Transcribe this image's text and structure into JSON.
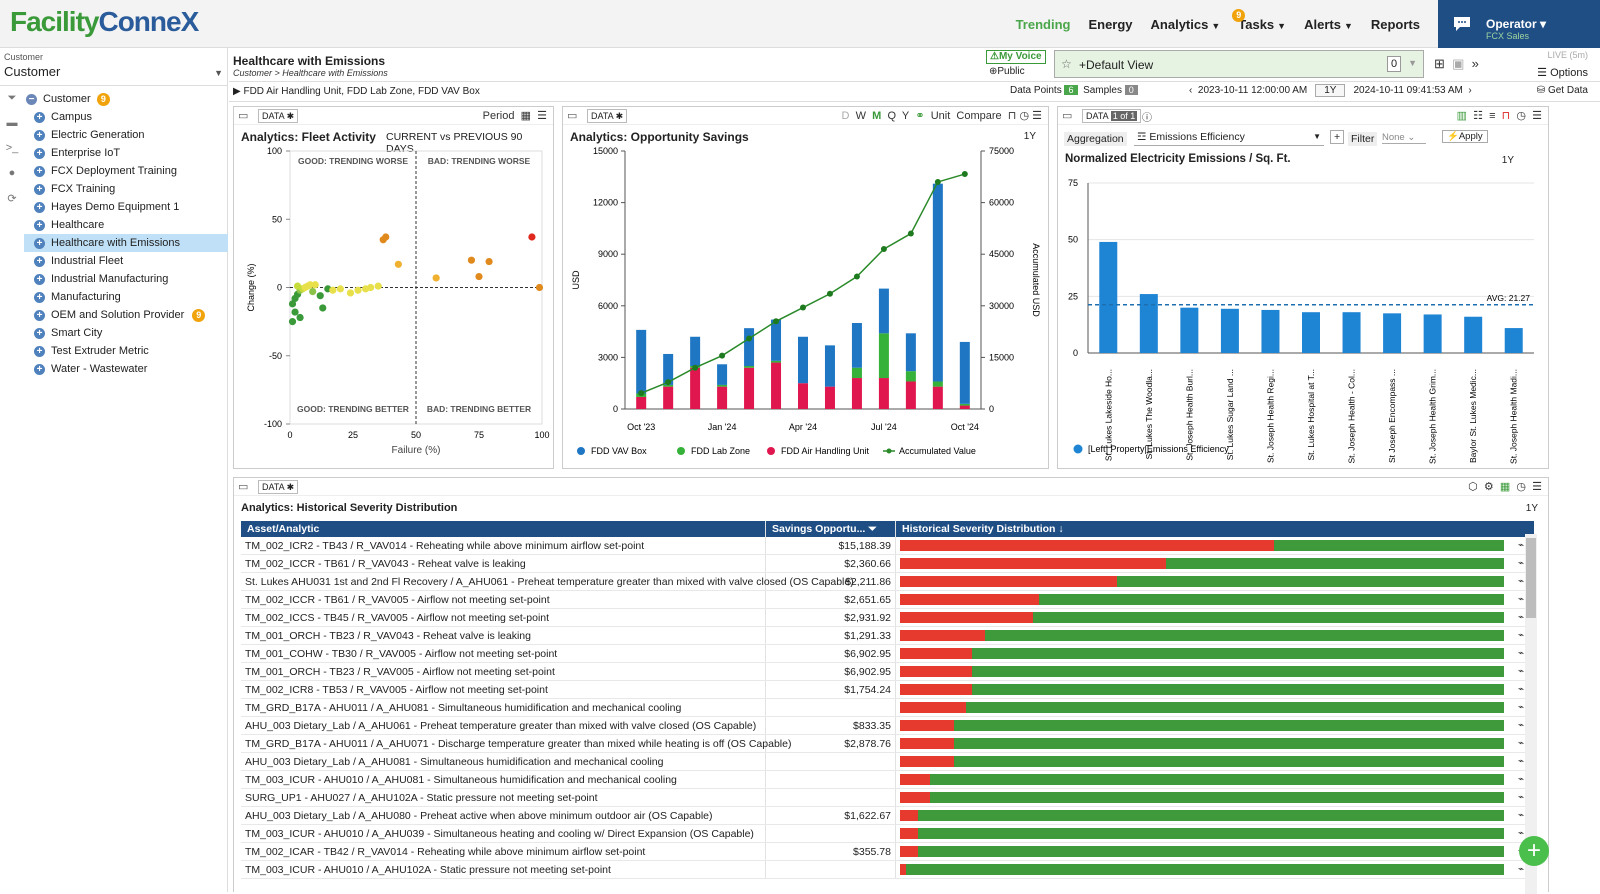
{
  "app": {
    "logo_a": "Facility",
    "logo_b": "ConneX"
  },
  "nav": {
    "trending": "Trending",
    "energy": "Energy",
    "analytics": "Analytics",
    "tasks": "Tasks",
    "tasks_badge": "9",
    "alerts": "Alerts",
    "reports": "Reports"
  },
  "operator": {
    "name": "Operator",
    "sub": "FCX Sales"
  },
  "sidebar": {
    "label": "Customer",
    "selected": "Customer",
    "root": "Customer",
    "root_badge": "9",
    "items": [
      "Campus",
      "Electric Generation",
      "Enterprise IoT",
      "FCX Deployment Training",
      "FCX Training",
      "Hayes Demo Equipment 1",
      "Healthcare",
      "Healthcare with Emissions",
      "Industrial Fleet",
      "Industrial Manufacturing",
      "Manufacturing",
      "OEM and Solution Provider",
      "Smart City",
      "Test Extruder Metric",
      "Water - Wastewater"
    ],
    "oem_badge": "9"
  },
  "page": {
    "title": "Healthcare with Emissions",
    "crumb": "Customer > Healthcare with Emissions",
    "myvoice": "My Voice",
    "public": "Public",
    "view": "+Default View",
    "view_count": "0",
    "live": "LIVE (5m)",
    "options": "Options"
  },
  "filter": {
    "equipment": "FDD Air Handling Unit, FDD Lab Zone, FDD VAV Box",
    "dp_label": "Data Points",
    "dp": "6",
    "samples_label": "Samples",
    "samples": "0",
    "start": "2023-10-11 12:00:00 AM",
    "range": "1Y",
    "end": "2024-10-11 09:41:53 AM",
    "getdata": "Get Data"
  },
  "fleet": {
    "data": "DATA",
    "period": "Period",
    "title": "Analytics: Fleet Activity",
    "subtitle": "CURRENT vs PREVIOUS 90 DAYS",
    "q1": "GOOD: TRENDING WORSE",
    "q2": "BAD: TRENDING WORSE",
    "q3": "GOOD: TRENDING BETTER",
    "q4": "BAD: TRENDING BETTER"
  },
  "savings": {
    "data": "DATA",
    "periods": [
      "D",
      "W",
      "M",
      "Q",
      "Y"
    ],
    "unit": "Unit",
    "compare": "Compare",
    "title": "Analytics: Opportunity Savings",
    "range": "1Y"
  },
  "emis": {
    "data": "DATA",
    "pages": "1 of 1",
    "agg_label": "Aggregation",
    "agg": "Emissions Efficiency",
    "filter_label": "Filter",
    "filter": "None",
    "apply": "Apply",
    "title": "Normalized Electricity Emissions / Sq. Ft.",
    "range": "1Y"
  },
  "table": {
    "data": "DATA",
    "title": "Analytics: Historical Severity Distribution",
    "range": "1Y",
    "h1": "Asset/Analytic",
    "h2": "Savings Opportu...",
    "h3": "Historical Severity Distribution",
    "rows": [
      {
        "a": "TM_002_ICR2 - TB43 / R_VAV014 - Reheating while above minimum airflow set-point",
        "s": "$15,188.39",
        "r": 0.62
      },
      {
        "a": "TM_002_ICCR - TB61 / R_VAV043 - Reheat valve is leaking",
        "s": "$2,360.66",
        "r": 0.44
      },
      {
        "a": "St. Lukes AHU031 1st and 2nd Fl Recovery / A_AHU061 - Preheat temperature greater than mixed with valve closed (OS Capable)",
        "s": "$2,211.86",
        "r": 0.36
      },
      {
        "a": "TM_002_ICCR - TB61 / R_VAV005 - Airflow not meeting set-point",
        "s": "$2,651.65",
        "r": 0.23
      },
      {
        "a": "TM_002_ICCS - TB45 / R_VAV005 - Airflow not meeting set-point",
        "s": "$2,931.92",
        "r": 0.22
      },
      {
        "a": "TM_001_ORCH - TB23 / R_VAV043 - Reheat valve is leaking",
        "s": "$1,291.33",
        "r": 0.14
      },
      {
        "a": "TM_001_COHW - TB30 / R_VAV005 - Airflow not meeting set-point",
        "s": "$6,902.95",
        "r": 0.12
      },
      {
        "a": "TM_001_ORCH - TB23 / R_VAV005 - Airflow not meeting set-point",
        "s": "$6,902.95",
        "r": 0.12
      },
      {
        "a": "TM_002_ICR8 - TB53 / R_VAV005 - Airflow not meeting set-point",
        "s": "$1,754.24",
        "r": 0.12
      },
      {
        "a": "TM_GRD_B17A - AHU011 / A_AHU081 - Simultaneous humidification and mechanical cooling",
        "s": "",
        "r": 0.11
      },
      {
        "a": "AHU_003 Dietary_Lab / A_AHU061 - Preheat temperature greater than mixed with valve closed (OS Capable)",
        "s": "$833.35",
        "r": 0.09
      },
      {
        "a": "TM_GRD_B17A - AHU011 / A_AHU071 - Discharge temperature greater than mixed while heating is off (OS Capable)",
        "s": "$2,878.76",
        "r": 0.09
      },
      {
        "a": "AHU_003 Dietary_Lab / A_AHU081 - Simultaneous humidification and mechanical cooling",
        "s": "",
        "r": 0.09
      },
      {
        "a": "TM_003_ICUR - AHU010 / A_AHU081 - Simultaneous humidification and mechanical cooling",
        "s": "",
        "r": 0.05
      },
      {
        "a": "SURG_UP1 - AHU027 / A_AHU102A - Static pressure not meeting set-point",
        "s": "",
        "r": 0.05
      },
      {
        "a": "AHU_003 Dietary_Lab / A_AHU080 - Preheat active when above minimum outdoor air (OS Capable)",
        "s": "$1,622.67",
        "r": 0.03
      },
      {
        "a": "TM_003_ICUR - AHU010 / A_AHU039 - Simultaneous heating and cooling w/ Direct Expansion (OS Capable)",
        "s": "",
        "r": 0.03
      },
      {
        "a": "TM_002_ICAR - TB42 / R_VAV014 - Reheating while above minimum airflow set-point",
        "s": "$355.78",
        "r": 0.03
      },
      {
        "a": "TM_003_ICUR - AHU010 / A_AHU102A - Static pressure not meeting set-point",
        "s": "",
        "r": 0.01
      }
    ]
  },
  "colors": {
    "blue": "#1f77c4",
    "green": "#36b13a",
    "red": "#e0174f",
    "navy": "#1f4e85"
  },
  "chart_data": [
    {
      "type": "scatter",
      "title": "Analytics: Fleet Activity",
      "xlabel": "Failure (%)",
      "ylabel": "Change (%)",
      "xlim": [
        0,
        100
      ],
      "ylim": [
        -100,
        100
      ],
      "xticks": [
        0,
        25,
        50,
        75,
        100
      ],
      "yticks": [
        100,
        50,
        0,
        -50,
        -100
      ],
      "points": [
        [
          1,
          -25
        ],
        [
          2,
          -18
        ],
        [
          1,
          -12
        ],
        [
          2,
          -8
        ],
        [
          3,
          -5
        ],
        [
          4,
          -2
        ],
        [
          5,
          -1
        ],
        [
          6,
          0
        ],
        [
          7,
          1
        ],
        [
          3,
          1
        ],
        [
          8,
          2
        ],
        [
          10,
          2
        ],
        [
          12,
          -6
        ],
        [
          13,
          -15
        ],
        [
          9,
          -3
        ],
        [
          4,
          -22
        ],
        [
          15,
          -1
        ],
        [
          17,
          -2
        ],
        [
          20,
          -1
        ],
        [
          24,
          -4
        ],
        [
          27,
          -2
        ],
        [
          30,
          -1
        ],
        [
          32,
          0
        ],
        [
          35,
          1
        ],
        [
          37,
          35
        ],
        [
          38,
          37
        ],
        [
          43,
          17
        ],
        [
          58,
          7
        ],
        [
          72,
          20
        ],
        [
          75,
          8
        ],
        [
          79,
          19
        ],
        [
          96,
          37
        ],
        [
          99,
          0
        ]
      ],
      "colors": [
        "#3a9a3a",
        "#3a9a3a",
        "#3a9a3a",
        "#3a9a3a",
        "#3a9a3a",
        "#8bc34a",
        "#c6dc3a",
        "#e8e04a",
        "#e8e04a",
        "#c6dc3a",
        "#e8e04a",
        "#e8e04a",
        "#3a9a3a",
        "#3a9a3a",
        "#8bc34a",
        "#3a9a3a",
        "#3a9a3a",
        "#e8e04a",
        "#e8e04a",
        "#e8e04a",
        "#e8e04a",
        "#e8e04a",
        "#e8e04a",
        "#e8e04a",
        "#e08a1e",
        "#e08a1e",
        "#f0b030",
        "#f0b030",
        "#e08a1e",
        "#e08a1e",
        "#e08a1e",
        "#e0281e",
        "#e08a1e"
      ]
    },
    {
      "type": "bar",
      "title": "Analytics: Opportunity Savings",
      "ylabel": "USD",
      "y2label": "Accumulated USD",
      "ylim": [
        0,
        15000
      ],
      "y2lim": [
        0,
        75000
      ],
      "yticks": [
        0,
        3000,
        6000,
        9000,
        12000,
        15000
      ],
      "y2ticks": [
        0,
        15000,
        30000,
        45000,
        60000,
        75000
      ],
      "categories": [
        "Oct '23",
        "Nov '23",
        "Dec '23",
        "Jan '24",
        "Feb '24",
        "Mar '24",
        "Apr '24",
        "May '24",
        "Jun '24",
        "Jul '24",
        "Aug '24",
        "Sep '24",
        "Oct '24"
      ],
      "xticks": [
        "Oct '23",
        "Jan '24",
        "Apr '24",
        "Jul '24",
        "Oct '24"
      ],
      "series": [
        {
          "name": "FDD Air Handling Unit",
          "values": [
            700,
            1300,
            2400,
            1300,
            2400,
            2700,
            1500,
            1300,
            1800,
            1800,
            1600,
            1300,
            200
          ]
        },
        {
          "name": "FDD Lab Zone",
          "values": [
            200,
            100,
            100,
            100,
            100,
            100,
            0,
            0,
            600,
            2600,
            600,
            300,
            100
          ]
        },
        {
          "name": "FDD VAV Box",
          "values": [
            3700,
            1800,
            1700,
            1200,
            2200,
            2400,
            2700,
            2400,
            2600,
            2600,
            2200,
            11500,
            3600
          ]
        },
        {
          "name": "Accumulated Value",
          "values": [
            4600,
            7800,
            12000,
            15500,
            20500,
            25500,
            29500,
            33500,
            38500,
            46500,
            51000,
            66000,
            68300
          ]
        }
      ]
    },
    {
      "type": "bar",
      "title": "Normalized Electricity Emissions / Sq. Ft.",
      "ylim": [
        0,
        75
      ],
      "yticks": [
        0,
        25,
        50,
        75
      ],
      "avg": 21.27,
      "avg_label": "AVG: 21.27",
      "legend": "[Left] Property|Emissions Efficiency",
      "categories": [
        "St. Lukes Lakeside Ho...",
        "St. Lukes The Woodla...",
        "St. Joseph Health Burl...",
        "St. Lukes Sugar Land ...",
        "St. Joseph Health Regi...",
        "St. Lukes Hospital at T...",
        "St. Joseph Health - Col...",
        "St Joseph Encompass ...",
        "St. Joseph Health Grim...",
        "Baylor St. Lukes Medic...",
        "St. Joseph Health Madi..."
      ],
      "values": [
        49,
        26,
        20,
        19.5,
        19,
        18,
        18,
        17.5,
        17,
        16,
        11
      ]
    }
  ]
}
